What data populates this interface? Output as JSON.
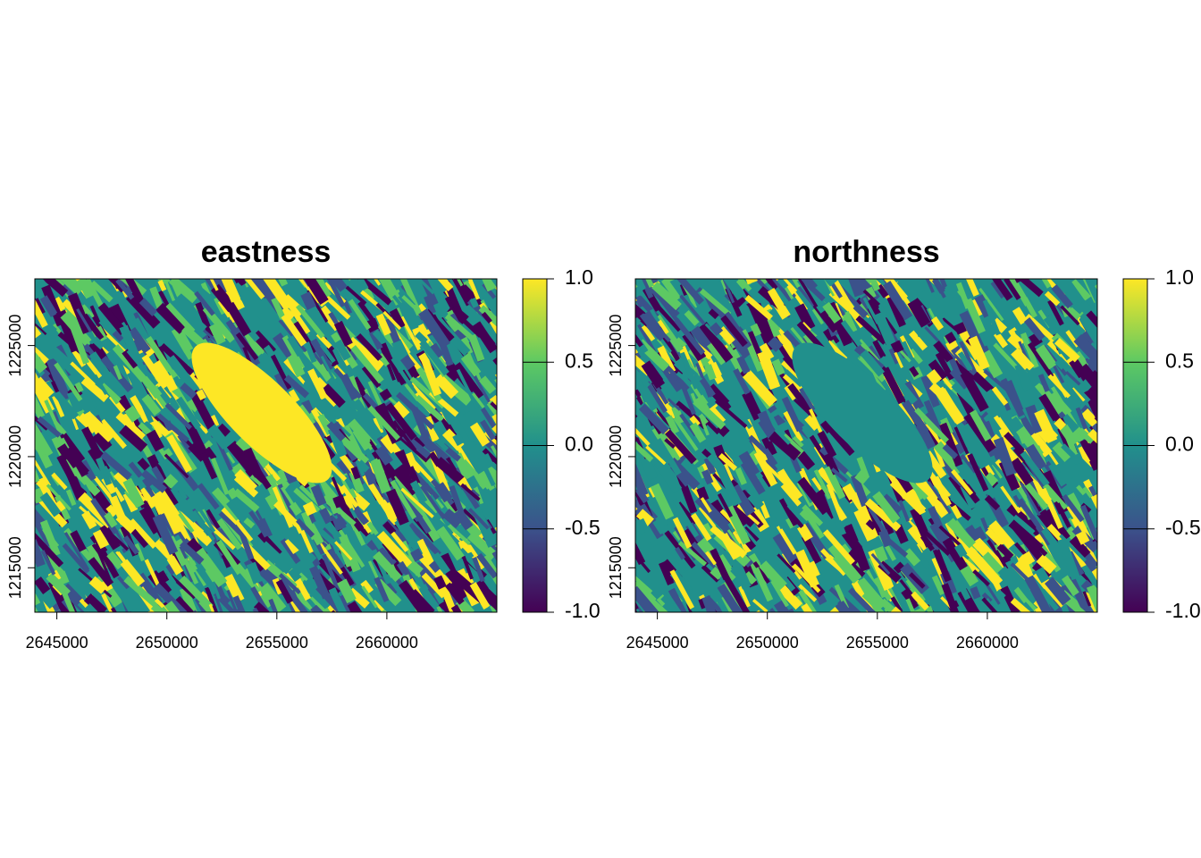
{
  "chart_data": [
    {
      "type": "raster",
      "title": "eastness",
      "xlim": [
        2644000,
        2665000
      ],
      "xticks": [
        2645000,
        2650000,
        2655000,
        2660000
      ],
      "ylim": [
        1213000,
        1228000
      ],
      "yticks": [
        1215000,
        1220000,
        1225000
      ],
      "lake_color": "#fde725",
      "colorbar": {
        "lim": [
          -1,
          1
        ],
        "colors": [
          "#440154",
          "#3b528b",
          "#21908c",
          "#5dc963",
          "#fde725"
        ],
        "ticks": [
          {
            "value": -1,
            "label": "-1.0"
          },
          {
            "value": -0.5,
            "label": "-0.5"
          },
          {
            "value": 0,
            "label": "0.0"
          },
          {
            "value": 0.5,
            "label": "0.5"
          },
          {
            "value": 1,
            "label": "1.0"
          }
        ]
      }
    },
    {
      "type": "raster",
      "title": "northness",
      "xlim": [
        2644000,
        2665000
      ],
      "xticks": [
        2645000,
        2650000,
        2655000,
        2660000
      ],
      "ylim": [
        1213000,
        1228000
      ],
      "yticks": [
        1215000,
        1220000,
        1225000
      ],
      "lake_color": "#21908c",
      "colorbar": {
        "lim": [
          -1,
          1
        ],
        "colors": [
          "#440154",
          "#3b528b",
          "#21908c",
          "#5dc963",
          "#fde725"
        ],
        "ticks": [
          {
            "value": -1,
            "label": "-1.0"
          },
          {
            "value": -0.5,
            "label": "-0.5"
          },
          {
            "value": 0,
            "label": "0.0"
          },
          {
            "value": 0.5,
            "label": "0.5"
          },
          {
            "value": 1,
            "label": "1.0"
          }
        ]
      }
    }
  ]
}
